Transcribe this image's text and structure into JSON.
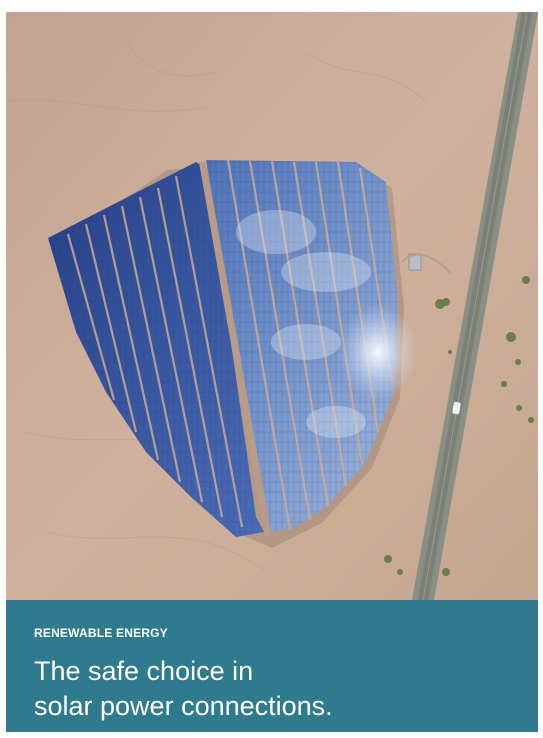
{
  "hero_image": {
    "icon": "solar-farm-aerial-photo"
  },
  "caption": {
    "kicker": "RENEWABLE ENERGY",
    "headline_lines": [
      "The safe choice in",
      "solar power connections."
    ]
  },
  "colors": {
    "caption_background": "#2f7b8e",
    "caption_text": "#ffffff",
    "desert_ground": "#c9ab95",
    "solar_panel_blue": "#3f63a8",
    "road": "#7c8277"
  }
}
